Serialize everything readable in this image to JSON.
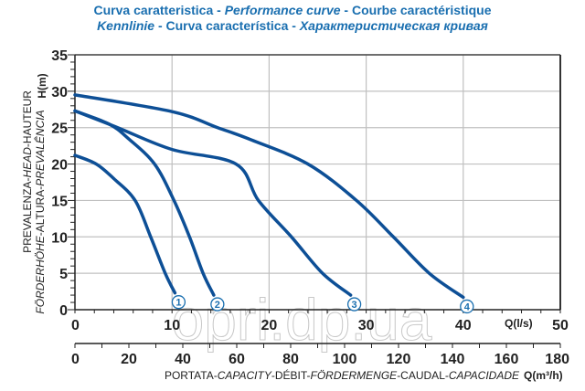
{
  "title": {
    "line1": [
      {
        "text": "Curva caratteristica - ",
        "italic": false
      },
      {
        "text": "Performance curve",
        "italic": true
      },
      {
        "text": " - Courbe caractéristique",
        "italic": false
      }
    ],
    "line2": [
      {
        "text": "Kennlinie",
        "italic": true
      },
      {
        "text": " - Curva característica - ",
        "italic": false
      },
      {
        "text": "Характеристическая кривая",
        "italic": true
      }
    ]
  },
  "watermark": "opri.dp.ua",
  "colors": {
    "curve": "#0d4f96",
    "title": "#1a6fb0",
    "grid": "#c0c0c0"
  },
  "chart_data": {
    "type": "line",
    "title": "Curva caratteristica - Performance curve - Courbe caractéristique / Kennlinie - Curva característica - Характеристическая кривая",
    "ylabel": {
      "unit": "H(m)",
      "line1": [
        {
          "text": "PREVALENZA-",
          "italic": false
        },
        {
          "text": "HEAD",
          "italic": true
        },
        {
          "text": "-HAUTEUR",
          "italic": false
        }
      ],
      "line2": [
        {
          "text": "FÖRDERHÖHE",
          "italic": true
        },
        {
          "text": "-ALTURA-",
          "italic": false
        },
        {
          "text": "PREVALÊNCIA",
          "italic": true
        }
      ]
    },
    "xlabel": {
      "unit_ls": "Q(l/s)",
      "unit_m3h": "Q(m³/h)",
      "parts": [
        {
          "text": "PORTATA-",
          "italic": false
        },
        {
          "text": "CAPACITY",
          "italic": true
        },
        {
          "text": "-DÉBIT-",
          "italic": false
        },
        {
          "text": "FÖRDERMENGE",
          "italic": true
        },
        {
          "text": "-CAUDAL-",
          "italic": false
        },
        {
          "text": "CAPACIDADE",
          "italic": true
        }
      ]
    },
    "xlim": [
      0,
      50
    ],
    "ylim": [
      0,
      35
    ],
    "x_ticks": [
      0,
      10,
      20,
      30,
      40,
      50
    ],
    "y_ticks": [
      0,
      5,
      10,
      15,
      20,
      25,
      30,
      35
    ],
    "x2_lim": [
      0,
      180
    ],
    "x2_ticks": [
      0,
      20,
      40,
      60,
      80,
      100,
      120,
      140,
      160,
      180
    ],
    "grid": true,
    "series": [
      {
        "name": "1",
        "points": [
          [
            0,
            21.2
          ],
          [
            2.2,
            20
          ],
          [
            4,
            18
          ],
          [
            6.2,
            15
          ],
          [
            7.8,
            10
          ],
          [
            9.3,
            5
          ],
          [
            10.3,
            2.3
          ]
        ]
      },
      {
        "name": "2",
        "points": [
          [
            0,
            27.3
          ],
          [
            3.5,
            25.5
          ],
          [
            5.5,
            23.5
          ],
          [
            8.2,
            20
          ],
          [
            10.2,
            15
          ],
          [
            11.8,
            10
          ],
          [
            13.2,
            5
          ],
          [
            14.3,
            2
          ]
        ]
      },
      {
        "name": "3",
        "points": [
          [
            0,
            27.3
          ],
          [
            4.4,
            25
          ],
          [
            10,
            22
          ],
          [
            16.6,
            20
          ],
          [
            18.9,
            15
          ],
          [
            22.3,
            10
          ],
          [
            25.5,
            5
          ],
          [
            28.4,
            2
          ]
        ]
      },
      {
        "name": "4",
        "points": [
          [
            0,
            29.5
          ],
          [
            10,
            27.2
          ],
          [
            14.7,
            25
          ],
          [
            18.2,
            23.3
          ],
          [
            24,
            20
          ],
          [
            29,
            15
          ],
          [
            32.8,
            10
          ],
          [
            36.5,
            5
          ],
          [
            40,
            1.7
          ]
        ]
      }
    ]
  }
}
